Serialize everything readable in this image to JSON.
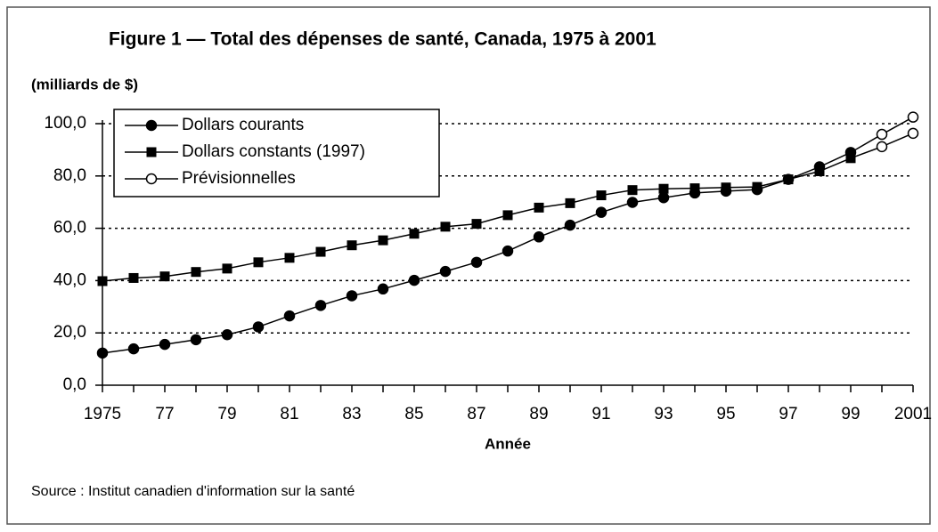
{
  "chart_data": {
    "type": "line",
    "title": "Figure 1 — Total des dépenses de santé, Canada, 1975 à 2001",
    "y_label": "(milliards de $)",
    "x_label": "Année",
    "source": "Source : Institut canadien d'information sur la santé",
    "categories": [
      "1975",
      null,
      "77",
      null,
      "79",
      null,
      "81",
      null,
      "83",
      null,
      "85",
      null,
      "87",
      null,
      "89",
      null,
      "91",
      null,
      "93",
      null,
      "95",
      null,
      "97",
      null,
      "99",
      null,
      "2001"
    ],
    "ylim": [
      0,
      100
    ],
    "yticks": [
      {
        "value": 0,
        "label": "0,0"
      },
      {
        "value": 20,
        "label": "20,0"
      },
      {
        "value": 40,
        "label": "40,0"
      },
      {
        "value": 60,
        "label": "60,0"
      },
      {
        "value": 80,
        "label": "80,0"
      },
      {
        "value": 100,
        "label": "100,0"
      }
    ],
    "grid": true,
    "legend": "top-left",
    "series": [
      {
        "name": "Dollars courants",
        "color": "#000000",
        "marker": "circle",
        "values": [
          12.3,
          13.9,
          15.6,
          17.4,
          19.3,
          22.3,
          26.5,
          30.5,
          34.2,
          36.8,
          40.1,
          43.5,
          47.0,
          51.3,
          56.7,
          61.2,
          66.1,
          69.9,
          71.7,
          73.5,
          74.2,
          74.8,
          78.7,
          83.5,
          89.0,
          null,
          null
        ]
      },
      {
        "name": "Dollars constants (1997)",
        "color": "#000000",
        "marker": "square",
        "values": [
          39.8,
          41.0,
          41.6,
          43.3,
          44.6,
          47.0,
          48.7,
          51.0,
          53.5,
          55.4,
          57.9,
          60.6,
          61.7,
          65.0,
          67.9,
          69.6,
          72.6,
          74.6,
          75.1,
          75.3,
          75.6,
          75.8,
          78.7,
          81.8,
          86.8,
          null,
          null
        ]
      },
      {
        "name": "Prévisionnelles",
        "color": "#000000",
        "marker": "open-circle",
        "extends": 0,
        "values": [
          null,
          null,
          null,
          null,
          null,
          null,
          null,
          null,
          null,
          null,
          null,
          null,
          null,
          null,
          null,
          null,
          null,
          null,
          null,
          null,
          null,
          null,
          null,
          null,
          null,
          95.9,
          102.5
        ]
      },
      {
        "color": "#000000",
        "marker": "open-circle",
        "extends": 1,
        "values": [
          null,
          null,
          null,
          null,
          null,
          null,
          null,
          null,
          null,
          null,
          null,
          null,
          null,
          null,
          null,
          null,
          null,
          null,
          null,
          null,
          null,
          null,
          null,
          null,
          null,
          91.2,
          96.3
        ]
      }
    ]
  }
}
